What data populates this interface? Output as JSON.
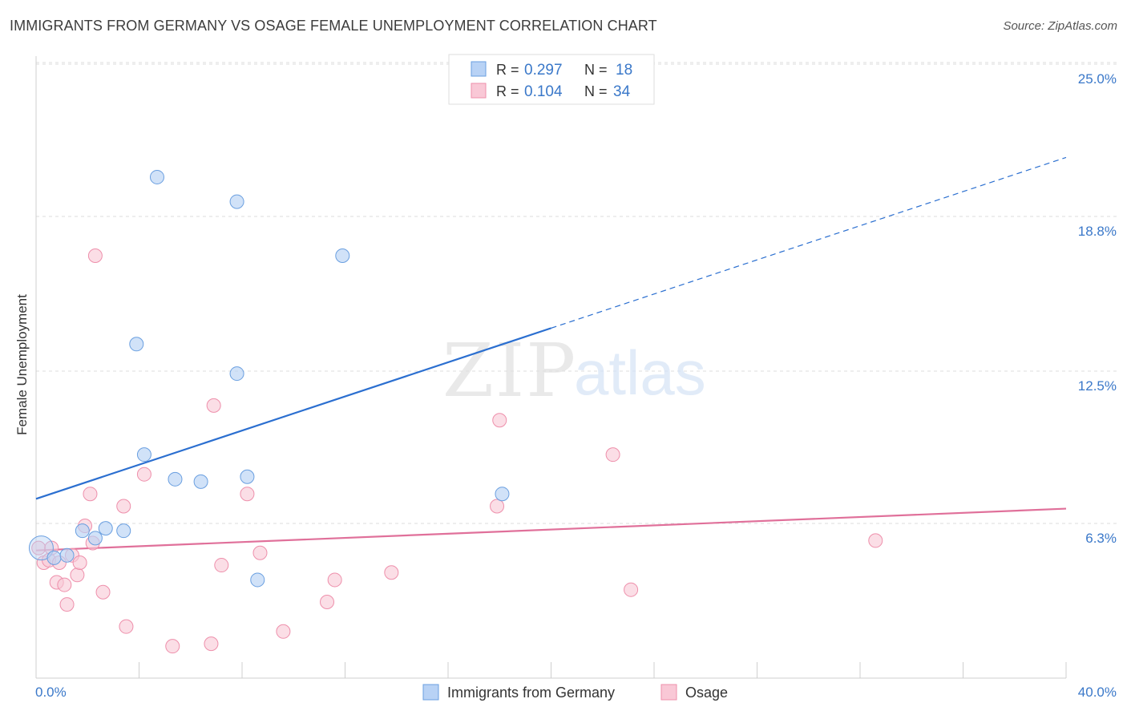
{
  "title": "IMMIGRANTS FROM GERMANY VS OSAGE FEMALE UNEMPLOYMENT CORRELATION CHART",
  "source": "Source: ZipAtlas.com",
  "watermark": {
    "zip": "ZIP",
    "atlas": "atlas"
  },
  "colors": {
    "germany_fill": "#b8d2f5",
    "germany_stroke": "#6a9fe0",
    "germany_line": "#2b6fd0",
    "osage_fill": "#f9c8d6",
    "osage_stroke": "#ee8fab",
    "osage_line": "#e0709a",
    "axis_text": "#3a78c9",
    "grid": "#dcdcdc"
  },
  "legend": {
    "rows": [
      {
        "r_label": "R =",
        "r_value": "0.297",
        "n_label": "N =",
        "n_value": "18"
      },
      {
        "r_label": "R =",
        "r_value": "0.104",
        "n_label": "N =",
        "n_value": "34"
      }
    ]
  },
  "bottom_legend": {
    "germany": "Immigrants from Germany",
    "osage": "Osage"
  },
  "chart_data": {
    "type": "scatter",
    "title": "IMMIGRANTS FROM GERMANY VS OSAGE FEMALE UNEMPLOYMENT CORRELATION CHART",
    "xlabel": "",
    "ylabel": "Female Unemployment",
    "xlim": [
      0,
      40
    ],
    "ylim": [
      0,
      25
    ],
    "x_tick_labels": [
      "0.0%",
      "40.0%"
    ],
    "y_ticks": [
      6.3,
      12.5,
      18.8,
      25.0
    ],
    "y_tick_labels": [
      "6.3%",
      "12.5%",
      "18.8%",
      "25.0%"
    ],
    "grid": true,
    "legend_position": "top-center",
    "series": [
      {
        "name": "Immigrants from Germany",
        "r": 0.297,
        "n": 18,
        "points": [
          [
            0.2,
            5.3
          ],
          [
            0.7,
            4.9
          ],
          [
            1.2,
            5.0
          ],
          [
            1.8,
            6.0
          ],
          [
            2.3,
            5.7
          ],
          [
            2.7,
            6.1
          ],
          [
            3.4,
            6.0
          ],
          [
            3.9,
            13.6
          ],
          [
            4.2,
            9.1
          ],
          [
            4.7,
            20.4
          ],
          [
            5.4,
            8.1
          ],
          [
            6.4,
            8.0
          ],
          [
            7.8,
            19.4
          ],
          [
            7.8,
            12.4
          ],
          [
            8.2,
            8.2
          ],
          [
            8.6,
            4.0
          ],
          [
            11.9,
            17.2
          ],
          [
            18.1,
            7.5
          ]
        ],
        "trend": {
          "x": [
            0,
            40
          ],
          "y": [
            7.3,
            21.2
          ],
          "solid_until_x": 20
        }
      },
      {
        "name": "Osage",
        "r": 0.104,
        "n": 34,
        "points": [
          [
            0.1,
            5.3
          ],
          [
            0.3,
            4.7
          ],
          [
            0.5,
            4.8
          ],
          [
            0.6,
            5.3
          ],
          [
            0.8,
            3.9
          ],
          [
            0.9,
            4.7
          ],
          [
            1.1,
            3.8
          ],
          [
            1.2,
            3.0
          ],
          [
            1.4,
            5.0
          ],
          [
            1.6,
            4.2
          ],
          [
            1.7,
            4.7
          ],
          [
            1.9,
            6.2
          ],
          [
            2.1,
            7.5
          ],
          [
            2.2,
            5.5
          ],
          [
            2.6,
            3.5
          ],
          [
            2.3,
            17.2
          ],
          [
            3.4,
            7.0
          ],
          [
            3.5,
            2.1
          ],
          [
            4.2,
            8.3
          ],
          [
            5.3,
            1.3
          ],
          [
            6.8,
            1.4
          ],
          [
            6.9,
            11.1
          ],
          [
            7.2,
            4.6
          ],
          [
            8.2,
            7.5
          ],
          [
            8.7,
            5.1
          ],
          [
            9.6,
            1.9
          ],
          [
            11.3,
            3.1
          ],
          [
            11.6,
            4.0
          ],
          [
            13.8,
            4.3
          ],
          [
            17.9,
            7.0
          ],
          [
            18.0,
            10.5
          ],
          [
            22.4,
            9.1
          ],
          [
            23.1,
            3.6
          ],
          [
            32.6,
            5.6
          ]
        ],
        "trend": {
          "x": [
            0,
            40
          ],
          "y": [
            5.2,
            6.9
          ]
        }
      }
    ]
  }
}
